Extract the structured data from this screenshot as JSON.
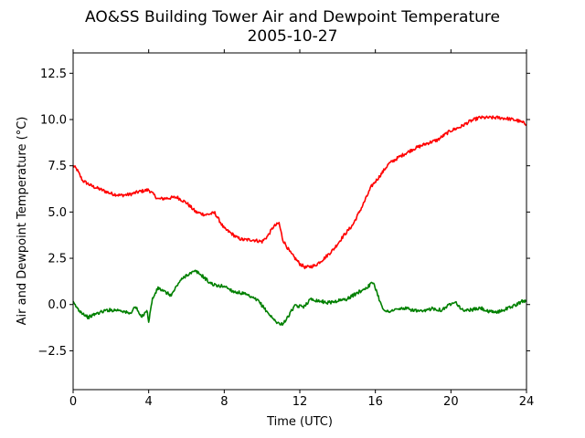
{
  "chart_data": {
    "type": "line",
    "title": "AO&SS Building Tower Air and Dewpoint Temperature",
    "subtitle": "2005-10-27",
    "xlabel": "Time (UTC)",
    "ylabel": "Air and Dewpoint Temperature (°C)",
    "xlim": [
      0,
      24
    ],
    "ylim": [
      -4.6,
      13.6
    ],
    "xticks": [
      0,
      4,
      8,
      12,
      16,
      20,
      24
    ],
    "xtick_labels": [
      "0",
      "4",
      "8",
      "12",
      "16",
      "20",
      "24"
    ],
    "yticks": [
      -2.5,
      0.0,
      2.5,
      5.0,
      7.5,
      10.0,
      12.5
    ],
    "ytick_labels": [
      "−2.5",
      "0.0",
      "2.5",
      "5.0",
      "7.5",
      "10.0",
      "12.5"
    ],
    "grid": false,
    "legend": "none",
    "series": [
      {
        "color": "#ff0000",
        "x": [
          0,
          0.2,
          0.5,
          1.0,
          1.5,
          2.0,
          2.5,
          3.0,
          3.5,
          4.0,
          4.2,
          4.5,
          5.0,
          5.5,
          6.0,
          6.5,
          7.0,
          7.5,
          8.0,
          8.3,
          8.7,
          9.0,
          9.5,
          10.0,
          10.3,
          10.6,
          10.9,
          11.1,
          11.5,
          12.0,
          12.3,
          12.8,
          13.3,
          13.8,
          14.3,
          14.8,
          15.3,
          15.8,
          16.2,
          16.7,
          17.3,
          18.0,
          18.7,
          19.3,
          19.7,
          20.0,
          20.5,
          21.0,
          21.5,
          22.0,
          22.5,
          23.0,
          23.5,
          24.0
        ],
        "y": [
          7.5,
          7.3,
          6.7,
          6.4,
          6.2,
          6.0,
          5.9,
          5.95,
          6.1,
          6.2,
          6.0,
          5.7,
          5.75,
          5.8,
          5.5,
          5.0,
          4.85,
          4.95,
          4.1,
          3.9,
          3.6,
          3.5,
          3.5,
          3.4,
          3.7,
          4.2,
          4.4,
          3.5,
          2.8,
          2.2,
          2.0,
          2.1,
          2.5,
          3.0,
          3.7,
          4.3,
          5.3,
          6.4,
          6.9,
          7.6,
          8.0,
          8.4,
          8.7,
          8.9,
          9.2,
          9.4,
          9.6,
          9.9,
          10.1,
          10.1,
          10.1,
          10.05,
          9.95,
          9.75
        ]
      },
      {
        "color": "#008000",
        "x": [
          0,
          0.3,
          0.8,
          1.2,
          1.8,
          2.5,
          3.0,
          3.3,
          3.6,
          3.9,
          4.0,
          4.2,
          4.5,
          4.8,
          5.2,
          5.6,
          6.0,
          6.5,
          6.9,
          7.2,
          7.6,
          8.0,
          8.5,
          9.0,
          9.4,
          9.8,
          10.2,
          10.6,
          11.0,
          11.3,
          11.7,
          12.2,
          12.6,
          13.0,
          13.5,
          14.0,
          14.5,
          15.0,
          15.5,
          15.9,
          16.2,
          16.5,
          17.0,
          17.5,
          18.0,
          18.5,
          19.0,
          19.5,
          19.8,
          20.2,
          20.6,
          21.0,
          21.6,
          22.0,
          22.5,
          23.0,
          23.5,
          23.8,
          24.0
        ],
        "y": [
          0.1,
          -0.3,
          -0.7,
          -0.5,
          -0.3,
          -0.3,
          -0.5,
          -0.1,
          -0.7,
          -0.3,
          -0.9,
          0.3,
          0.9,
          0.7,
          0.5,
          1.2,
          1.6,
          1.8,
          1.5,
          1.2,
          1.0,
          1.0,
          0.7,
          0.6,
          0.4,
          0.2,
          -0.3,
          -0.8,
          -1.1,
          -0.8,
          -0.1,
          -0.1,
          0.3,
          0.2,
          0.1,
          0.2,
          0.3,
          0.6,
          0.9,
          1.2,
          0.3,
          -0.4,
          -0.3,
          -0.2,
          -0.3,
          -0.4,
          -0.2,
          -0.3,
          -0.1,
          0.2,
          -0.3,
          -0.3,
          -0.2,
          -0.4,
          -0.4,
          -0.2,
          0.0,
          0.2,
          0.2
        ]
      }
    ]
  }
}
